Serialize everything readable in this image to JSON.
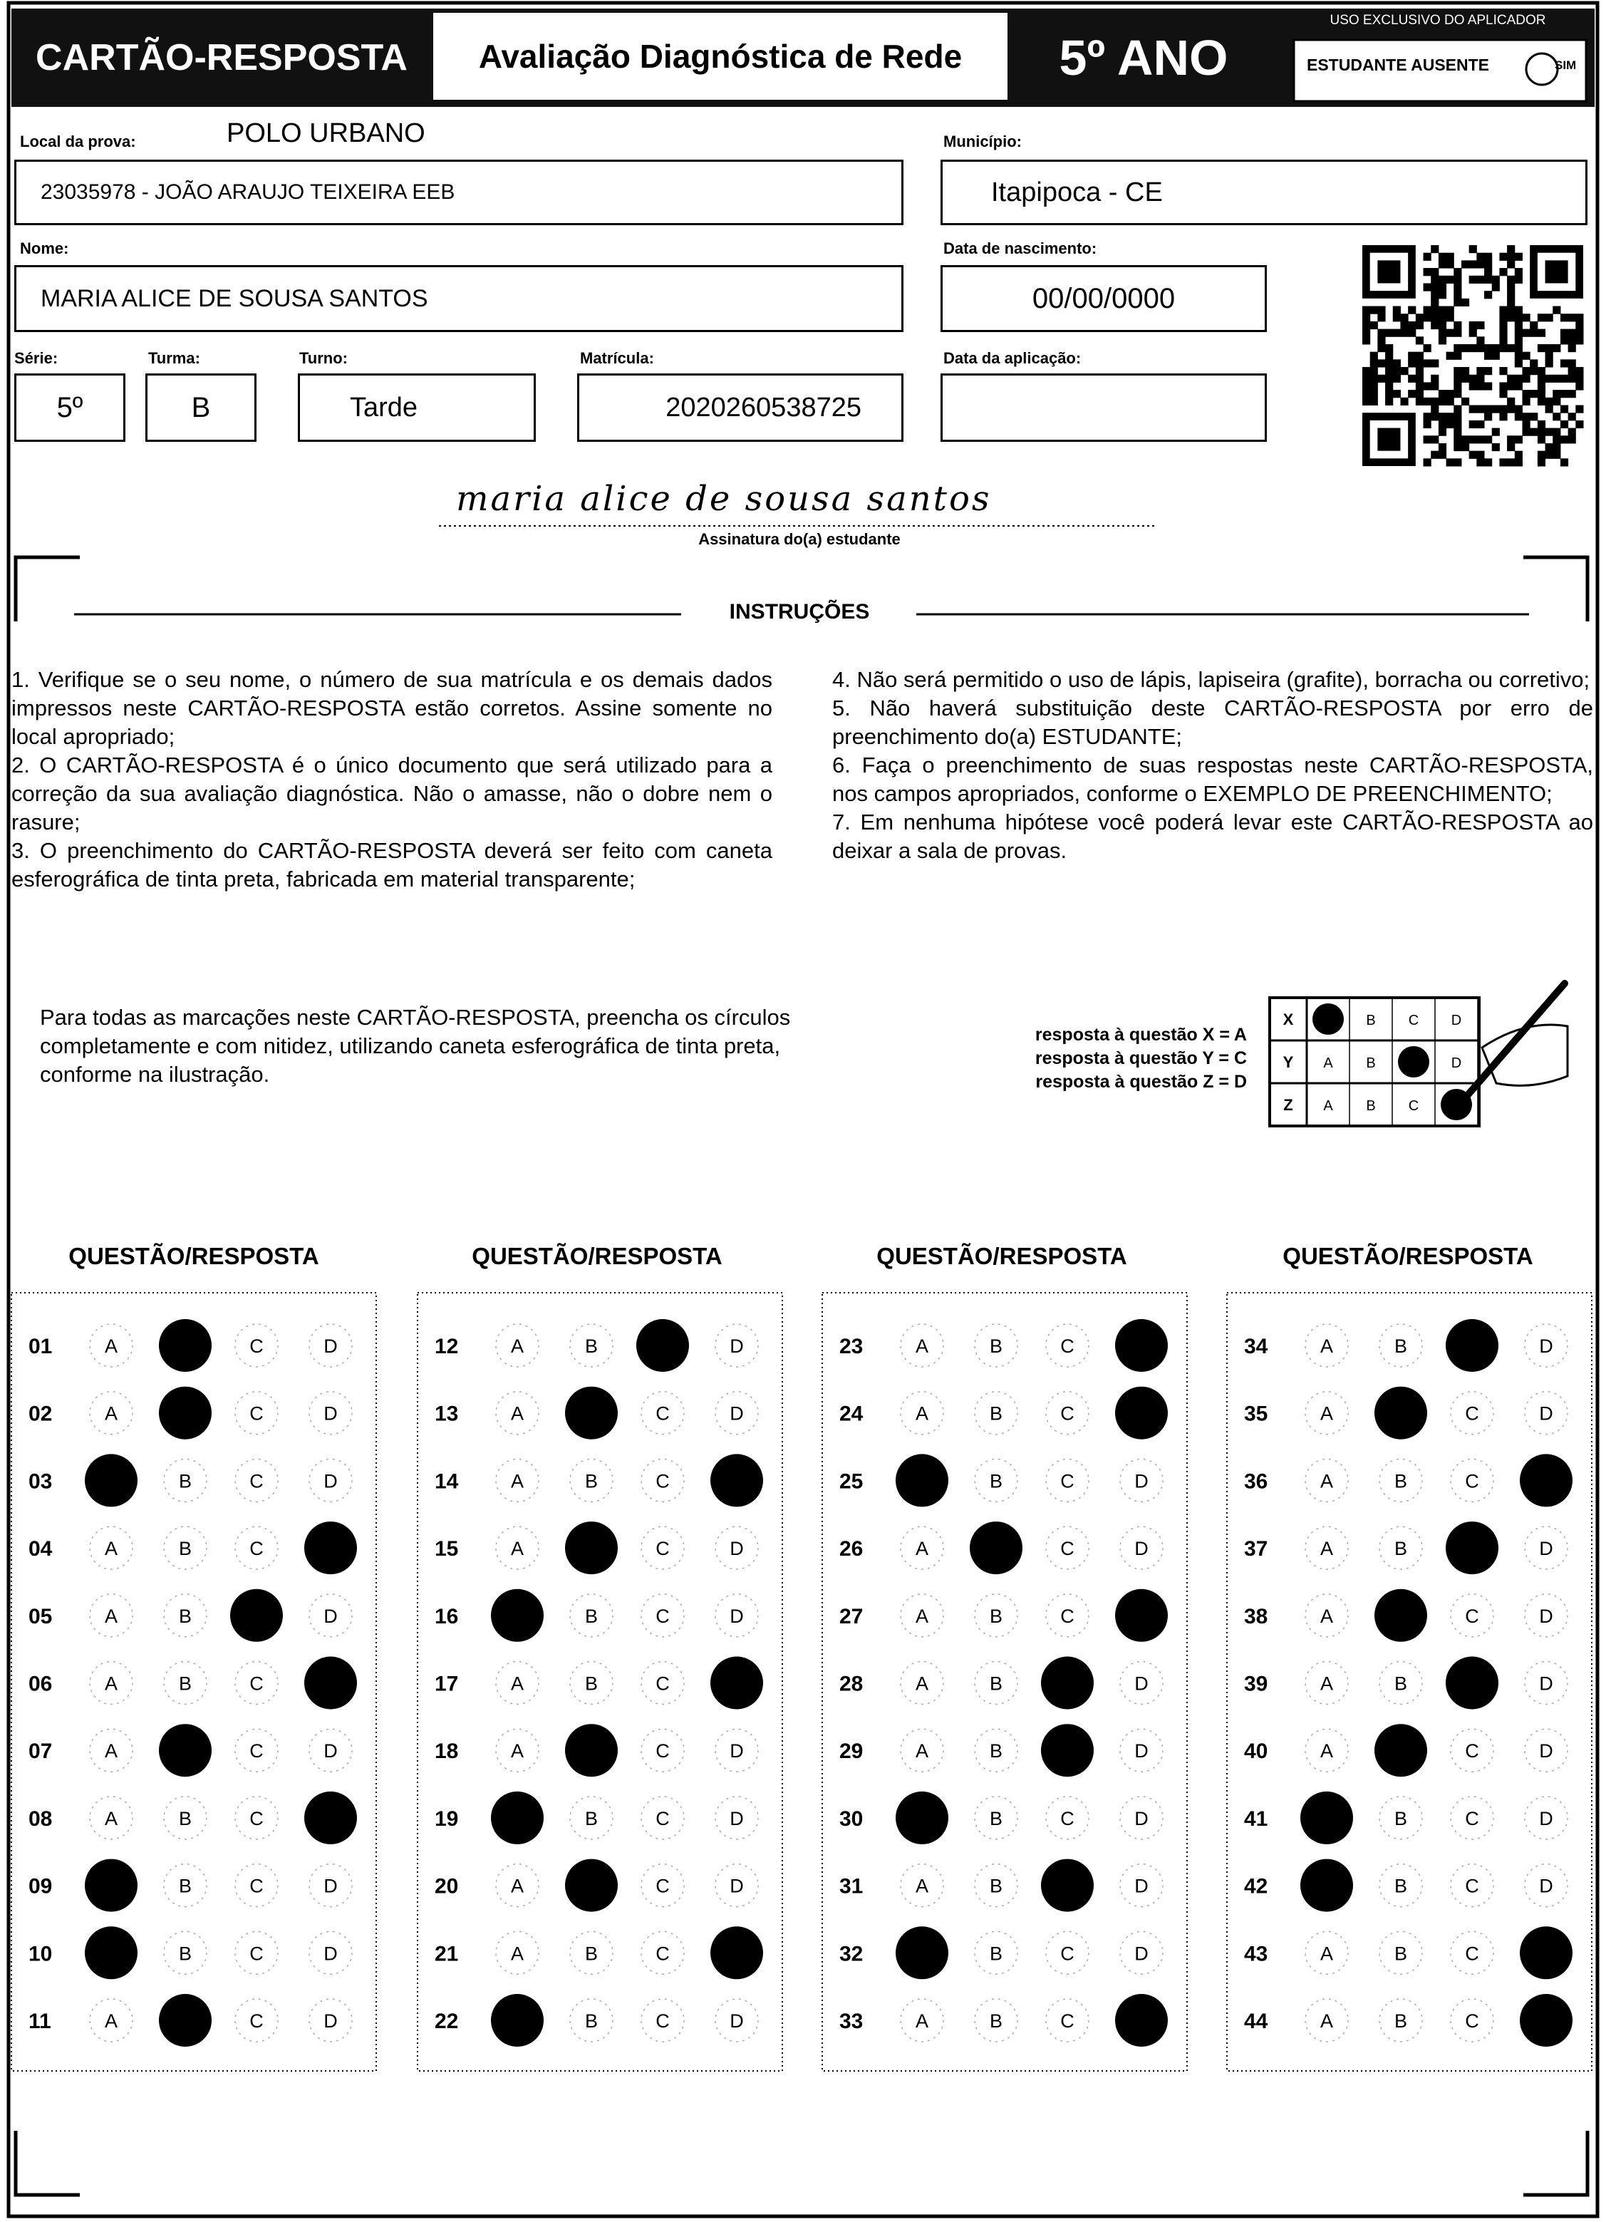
{
  "header": {
    "title": "CARTÃO-RESPOSTA",
    "subtitle": "Avaliação Diagnóstica de Rede",
    "grade": "5º ANO",
    "applicator_label": "USO EXCLUSIVO DO APLICADOR",
    "absent_label": "ESTUDANTE AUSENTE",
    "absent_option": "SIM"
  },
  "fields": {
    "local": {
      "label": "Local da prova:",
      "polo": "POLO URBANO",
      "value": "23035978 - JOÃO ARAUJO TEIXEIRA EEB"
    },
    "municipio": {
      "label": "Município:",
      "value": "Itapipoca - CE"
    },
    "nome": {
      "label": "Nome:",
      "value": "MARIA ALICE DE SOUSA SANTOS"
    },
    "nascimento": {
      "label": "Data de nascimento:",
      "value": "00/00/0000"
    },
    "serie": {
      "label": "Série:",
      "value": "5º"
    },
    "turma": {
      "label": "Turma:",
      "value": "B"
    },
    "turno": {
      "label": "Turno:",
      "value": "Tarde"
    },
    "matricula": {
      "label": "Matrícula:",
      "value": "2020260538725"
    },
    "aplicacao": {
      "label": "Data da aplicação:"
    }
  },
  "signature": {
    "text": "maria alice de sousa santos",
    "label": "Assinatura do(a) estudante"
  },
  "instructions": {
    "title": "INSTRUÇÕES",
    "items": [
      "1. Verifique se o seu nome, o número de sua matrícula e os demais dados impressos neste CARTÃO-RESPOSTA estão corretos. Assine somente no local apropriado;",
      "2. O CARTÃO-RESPOSTA é o único documento que será utilizado para a correção da sua avaliação diagnóstica. Não o amasse, não o dobre nem o rasure;",
      "3. O preenchimento do CARTÃO-RESPOSTA deverá ser feito com caneta esferográfica de tinta preta, fabricada em material transparente;",
      "4. Não será permitido o uso de lápis, lapiseira (grafite), borracha ou corretivo;",
      "5. Não haverá substituição deste CARTÃO-RESPOSTA por erro de preenchimento do(a) ESTUDANTE;",
      "6. Faça o preenchimento de suas respostas neste CARTÃO-RESPOSTA, nos campos apropriados, conforme o EXEMPLO DE PREENCHIMENTO;",
      "7. Em nenhuma hipótese você poderá levar este CARTÃO-RESPOSTA ao deixar a sala de provas."
    ]
  },
  "example": {
    "text": "Para todas as marcações neste CARTÃO-RESPOSTA, preencha os círculos completamente e com nitidez, utilizando caneta esferográfica de tinta preta, conforme na ilustração.",
    "legend": [
      "resposta à questão X = A",
      "resposta à questão Y = C",
      "resposta à questão Z = D"
    ],
    "rows": [
      {
        "question": "X",
        "marked": "A"
      },
      {
        "question": "Y",
        "marked": "C"
      },
      {
        "question": "Z",
        "marked": "D"
      }
    ]
  },
  "answer_options": [
    "A",
    "B",
    "C",
    "D"
  ],
  "question_heading": "QUESTÃO/RESPOSTA",
  "questions": [
    {
      "number": "01",
      "marked": "B"
    },
    {
      "number": "02",
      "marked": "B"
    },
    {
      "number": "03",
      "marked": "A"
    },
    {
      "number": "04",
      "marked": "D"
    },
    {
      "number": "05",
      "marked": "C"
    },
    {
      "number": "06",
      "marked": "D"
    },
    {
      "number": "07",
      "marked": "B"
    },
    {
      "number": "08",
      "marked": "D"
    },
    {
      "number": "09",
      "marked": "A"
    },
    {
      "number": "10",
      "marked": "A"
    },
    {
      "number": "11",
      "marked": "B"
    },
    {
      "number": "12",
      "marked": "C"
    },
    {
      "number": "13",
      "marked": "B"
    },
    {
      "number": "14",
      "marked": "D"
    },
    {
      "number": "15",
      "marked": "B"
    },
    {
      "number": "16",
      "marked": "A"
    },
    {
      "number": "17",
      "marked": "D"
    },
    {
      "number": "18",
      "marked": "B"
    },
    {
      "number": "19",
      "marked": "A"
    },
    {
      "number": "20",
      "marked": "B"
    },
    {
      "number": "21",
      "marked": "D"
    },
    {
      "number": "22",
      "marked": "A"
    },
    {
      "number": "23",
      "marked": "D"
    },
    {
      "number": "24",
      "marked": "D"
    },
    {
      "number": "25",
      "marked": "A"
    },
    {
      "number": "26",
      "marked": "B"
    },
    {
      "number": "27",
      "marked": "D"
    },
    {
      "number": "28",
      "marked": "C"
    },
    {
      "number": "29",
      "marked": "C"
    },
    {
      "number": "30",
      "marked": "A"
    },
    {
      "number": "31",
      "marked": "C"
    },
    {
      "number": "32",
      "marked": "A"
    },
    {
      "number": "33",
      "marked": "D"
    },
    {
      "number": "34",
      "marked": "C"
    },
    {
      "number": "35",
      "marked": "B"
    },
    {
      "number": "36",
      "marked": "D"
    },
    {
      "number": "37",
      "marked": "C"
    },
    {
      "number": "38",
      "marked": "B"
    },
    {
      "number": "39",
      "marked": "C"
    },
    {
      "number": "40",
      "marked": "B"
    },
    {
      "number": "41",
      "marked": "A"
    },
    {
      "number": "42",
      "marked": "A"
    },
    {
      "number": "43",
      "marked": "D"
    },
    {
      "number": "44",
      "marked": "D"
    }
  ]
}
